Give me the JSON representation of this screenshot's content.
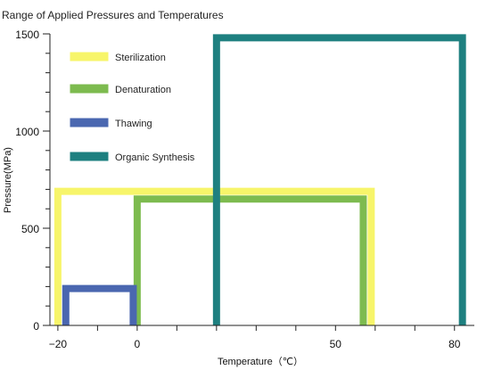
{
  "chart_data": {
    "type": "area",
    "title": "Range of Applied Pressures and Temperatures",
    "xlabel": "Temperature（℃）",
    "ylabel": "Pressure(MPa)",
    "xlim": [
      -22,
      85
    ],
    "ylim": [
      0,
      1500
    ],
    "xticks": [
      -20,
      0,
      50,
      80
    ],
    "xtick_labels": [
      "−20",
      "0",
      "50",
      "80"
    ],
    "yticks": [
      0,
      500,
      1000,
      1500
    ],
    "ytick_labels": [
      "0",
      "500",
      "1000",
      "1500"
    ],
    "grid": false,
    "legend_position": "top-left",
    "series": [
      {
        "name": "Sterilization",
        "color": "#f7f56a",
        "x_range": [
          -20,
          59
        ],
        "y_range": [
          0,
          690
        ]
      },
      {
        "name": "Denaturation",
        "color": "#7dbb4f",
        "x_range": [
          0,
          57
        ],
        "y_range": [
          0,
          650
        ]
      },
      {
        "name": "Thawing",
        "color": "#4a67b0",
        "x_range": [
          -18,
          -1
        ],
        "y_range": [
          0,
          190
        ]
      },
      {
        "name": "Organic Synthesis",
        "color": "#1e8080",
        "x_range": [
          20,
          82
        ],
        "y_range": [
          0,
          1480
        ]
      }
    ]
  }
}
